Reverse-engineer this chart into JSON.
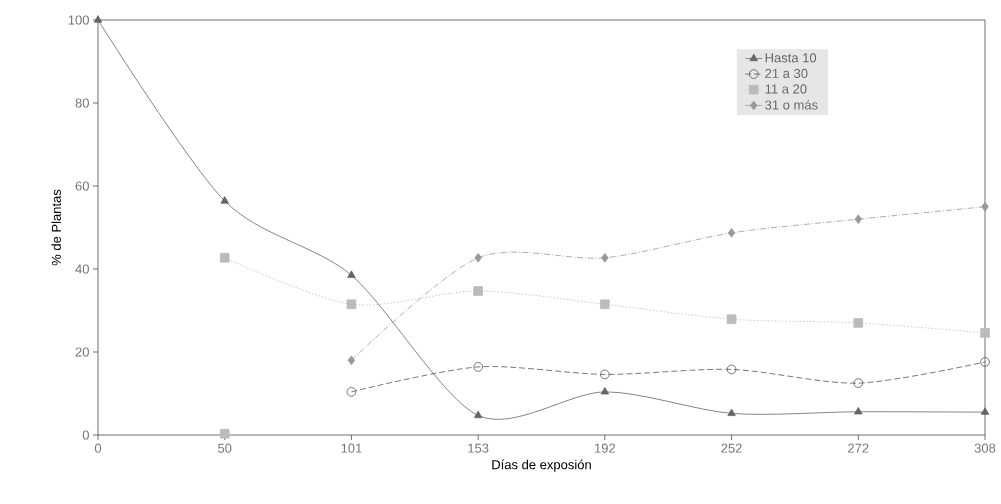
{
  "chart_data": {
    "type": "line",
    "xlabel": "Días de exposión",
    "ylabel": "% de Plantas",
    "categories": [
      "0",
      "50",
      "101",
      "153",
      "192",
      "252",
      "272",
      "308"
    ],
    "ylim": [
      0,
      100
    ],
    "yticks": [
      0,
      20,
      40,
      60,
      80,
      100
    ],
    "legend": "top right",
    "grid": false,
    "series": [
      {
        "name": "Hasta 10",
        "color": "#666666",
        "marker": "triangle",
        "line_style": "solid",
        "values": [
          100,
          56.4,
          38.5,
          4.7,
          10.4,
          5.2,
          5.6,
          5.5
        ]
      },
      {
        "name": "21 a 30",
        "color": "#555555",
        "marker": "circle",
        "line_style": "dashed",
        "values": [
          null,
          null,
          10.4,
          16.4,
          14.6,
          15.8,
          12.5,
          17.6
        ]
      },
      {
        "name": "11 a 20",
        "color": "#bbbbbb",
        "marker": "square",
        "line_style": "dotted",
        "values": [
          null,
          42.7,
          31.5,
          34.7,
          31.5,
          27.9,
          27.0,
          24.6
        ]
      },
      {
        "name": "31 o más",
        "color": "#999999",
        "marker": "diamond",
        "line_style": "dashdot",
        "values": [
          null,
          null,
          18.0,
          42.7,
          42.7,
          48.7,
          52.0,
          55.0
        ]
      },
      {
        "type": "scatter",
        "color": "#bbbbbb",
        "marker": "square",
        "values": [
          null,
          0.3,
          null,
          null,
          null,
          null,
          null,
          null
        ]
      }
    ]
  }
}
